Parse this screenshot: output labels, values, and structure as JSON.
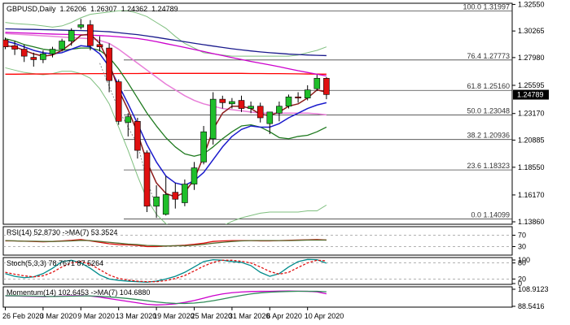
{
  "chart_data": {
    "type": "candlestick",
    "header": {
      "symbol": "GBPUSD,Daily",
      "ohlc": [
        "1.26206",
        "1.26307",
        "1.24362",
        "1.24789"
      ]
    },
    "colors": {
      "bull": "#1fbf2a",
      "bear": "#e01010",
      "wick": "#000000",
      "current_price_bg": "#000000"
    },
    "price_axis": {
      "ticks": [
        "1.32550",
        "1.30265",
        "1.27980",
        "1.25595",
        "1.23170",
        "1.20885",
        "1.18550",
        "1.16170",
        "1.13860"
      ],
      "ylim": [
        1.1365,
        1.3265
      ],
      "current_price": "1.24789"
    },
    "time_axis": {
      "labels": [
        "26 Feb 2020",
        "3 Mar 2020",
        "9 Mar 2020",
        "13 Mar 2020",
        "19 Mar 2020",
        "25 Mar 2020",
        "31 Mar 2020",
        "6 Apr 2020",
        "10 Apr 2020"
      ],
      "label_bar_index": [
        0,
        4,
        8,
        12,
        16,
        20,
        24,
        28,
        32
      ]
    },
    "fibonacci": {
      "levels": [
        {
          "label": "100.0 1.31997",
          "value": 1.31997
        },
        {
          "label": "76.4 1.27773",
          "value": 1.27773
        },
        {
          "label": "61.8 1.25160",
          "value": 1.2516
        },
        {
          "label": "50.0 1.23048",
          "value": 1.23048
        },
        {
          "label": "38.2 1.20936",
          "value": 1.20936
        },
        {
          "label": "23.6 1.18323",
          "value": 1.18323
        },
        {
          "label": "0.0 1.14099",
          "value": 1.14099
        }
      ]
    },
    "candles": [
      {
        "o": 1.295,
        "h": 1.297,
        "l": 1.287,
        "c": 1.289
      },
      {
        "o": 1.29,
        "h": 1.294,
        "l": 1.282,
        "c": 1.287
      },
      {
        "o": 1.287,
        "h": 1.291,
        "l": 1.276,
        "c": 1.281
      },
      {
        "o": 1.28,
        "h": 1.284,
        "l": 1.272,
        "c": 1.278
      },
      {
        "o": 1.278,
        "h": 1.286,
        "l": 1.275,
        "c": 1.283
      },
      {
        "o": 1.283,
        "h": 1.289,
        "l": 1.28,
        "c": 1.287
      },
      {
        "o": 1.287,
        "h": 1.296,
        "l": 1.285,
        "c": 1.294
      },
      {
        "o": 1.294,
        "h": 1.305,
        "l": 1.29,
        "c": 1.303
      },
      {
        "o": 1.306,
        "h": 1.313,
        "l": 1.304,
        "c": 1.308
      },
      {
        "o": 1.308,
        "h": 1.312,
        "l": 1.286,
        "c": 1.29
      },
      {
        "o": 1.291,
        "h": 1.298,
        "l": 1.285,
        "c": 1.289
      },
      {
        "o": 1.288,
        "h": 1.292,
        "l": 1.25,
        "c": 1.26
      },
      {
        "o": 1.259,
        "h": 1.261,
        "l": 1.222,
        "c": 1.225
      },
      {
        "o": 1.224,
        "h": 1.232,
        "l": 1.212,
        "c": 1.229
      },
      {
        "o": 1.225,
        "h": 1.228,
        "l": 1.193,
        "c": 1.2
      },
      {
        "o": 1.198,
        "h": 1.2,
        "l": 1.147,
        "c": 1.152
      },
      {
        "o": 1.152,
        "h": 1.17,
        "l": 1.142,
        "c": 1.16
      },
      {
        "o": 1.145,
        "h": 1.178,
        "l": 1.144,
        "c": 1.162
      },
      {
        "o": 1.164,
        "h": 1.172,
        "l": 1.15,
        "c": 1.158
      },
      {
        "o": 1.155,
        "h": 1.175,
        "l": 1.152,
        "c": 1.171
      },
      {
        "o": 1.171,
        "h": 1.19,
        "l": 1.166,
        "c": 1.185
      },
      {
        "o": 1.19,
        "h": 1.221,
        "l": 1.188,
        "c": 1.216
      },
      {
        "o": 1.21,
        "h": 1.25,
        "l": 1.205,
        "c": 1.244
      },
      {
        "o": 1.244,
        "h": 1.247,
        "l": 1.236,
        "c": 1.241
      },
      {
        "o": 1.24,
        "h": 1.245,
        "l": 1.236,
        "c": 1.242
      },
      {
        "o": 1.243,
        "h": 1.247,
        "l": 1.233,
        "c": 1.236
      },
      {
        "o": 1.236,
        "h": 1.242,
        "l": 1.232,
        "c": 1.238
      },
      {
        "o": 1.238,
        "h": 1.241,
        "l": 1.224,
        "c": 1.228
      },
      {
        "o": 1.223,
        "h": 1.232,
        "l": 1.214,
        "c": 1.233
      },
      {
        "o": 1.232,
        "h": 1.242,
        "l": 1.225,
        "c": 1.238
      },
      {
        "o": 1.238,
        "h": 1.248,
        "l": 1.236,
        "c": 1.246
      },
      {
        "o": 1.246,
        "h": 1.25,
        "l": 1.241,
        "c": 1.245
      },
      {
        "o": 1.245,
        "h": 1.256,
        "l": 1.243,
        "c": 1.252
      },
      {
        "o": 1.253,
        "h": 1.265,
        "l": 1.251,
        "c": 1.262
      },
      {
        "o": 1.262,
        "h": 1.263,
        "l": 1.244,
        "c": 1.248
      }
    ],
    "lines": [
      {
        "name": "",
        "color": "#ff0000",
        "width": 1.3,
        "values": [
          1.2655,
          1.2655,
          1.2656,
          1.2657,
          1.2657,
          1.2658,
          1.2658,
          1.2659,
          1.2659,
          1.266,
          1.266,
          1.266,
          1.2661,
          1.2661,
          1.2661,
          1.2662,
          1.2662,
          1.2662,
          1.2662,
          1.2662,
          1.2662,
          1.2662,
          1.2662,
          1.2662,
          1.2662,
          1.2662,
          1.2661,
          1.2661,
          1.266,
          1.266,
          1.2659,
          1.2658,
          1.2657,
          1.2656,
          1.2655
        ]
      },
      {
        "name": "",
        "color": "#cc00cc",
        "width": 1.3,
        "values": [
          1.3015,
          1.3012,
          1.3009,
          1.3006,
          1.3003,
          1.3,
          1.2998,
          1.2996,
          1.2994,
          1.2991,
          1.2987,
          1.2983,
          1.2977,
          1.297,
          1.2962,
          1.295,
          1.2935,
          1.2918,
          1.2902,
          1.2885,
          1.2868,
          1.285,
          1.2832,
          1.2815,
          1.2798,
          1.2781,
          1.2765,
          1.275,
          1.2735,
          1.2719,
          1.2702,
          1.2685,
          1.267,
          1.2655,
          1.264
        ]
      },
      {
        "name": "",
        "color": "#1a1a8c",
        "width": 1.3,
        "values": [
          1.3045,
          1.3043,
          1.3041,
          1.304,
          1.3038,
          1.3036,
          1.3034,
          1.3032,
          1.303,
          1.3028,
          1.3024,
          1.302,
          1.3012,
          1.3003,
          1.2995,
          1.2984,
          1.2972,
          1.2959,
          1.2946,
          1.2934,
          1.2921,
          1.2909,
          1.2897,
          1.2885,
          1.2874,
          1.2864,
          1.2855,
          1.2847,
          1.284,
          1.2834,
          1.2828,
          1.2824,
          1.282,
          1.2817,
          1.2815
        ]
      },
      {
        "name": "",
        "color": "#e87ed8",
        "width": 1.5,
        "values": [
          1.3005,
          1.3,
          1.2995,
          1.299,
          1.2985,
          1.298,
          1.2975,
          1.297,
          1.2965,
          1.296,
          1.2945,
          1.292,
          1.287,
          1.281,
          1.275,
          1.269,
          1.263,
          1.257,
          1.252,
          1.247,
          1.243,
          1.24,
          1.238,
          1.236,
          1.235,
          1.234,
          1.233,
          1.232,
          1.232,
          1.232,
          1.232,
          1.232,
          1.232,
          1.2315,
          1.2305
        ]
      },
      {
        "name": "",
        "color": "#1f7a1f",
        "width": 1.3,
        "values": [
          1.296,
          1.294,
          1.291,
          1.289,
          1.287,
          1.286,
          1.286,
          1.287,
          1.288,
          1.288,
          1.286,
          1.28,
          1.27,
          1.258,
          1.245,
          1.232,
          1.221,
          1.211,
          1.203,
          1.197,
          1.195,
          1.197,
          1.203,
          1.21,
          1.216,
          1.221,
          1.222,
          1.22,
          1.216,
          1.211,
          1.21,
          1.212,
          1.213,
          1.216,
          1.22
        ]
      },
      {
        "name": "",
        "color": "#1a1acc",
        "width": 1.5,
        "values": [
          1.294,
          1.292,
          1.289,
          1.286,
          1.284,
          1.283,
          1.284,
          1.287,
          1.29,
          1.289,
          1.283,
          1.272,
          1.256,
          1.24,
          1.223,
          1.205,
          1.19,
          1.178,
          1.172,
          1.17,
          1.174,
          1.181,
          1.192,
          1.203,
          1.212,
          1.218,
          1.221,
          1.22,
          1.22,
          1.223,
          1.228,
          1.232,
          1.236,
          1.239,
          1.241
        ]
      },
      {
        "name": "",
        "color": "#8b1a1a",
        "width": 1.5,
        "values": [
          1.29,
          1.289,
          1.286,
          1.283,
          1.281,
          1.282,
          1.286,
          1.292,
          1.299,
          1.3,
          1.292,
          1.275,
          1.252,
          1.235,
          1.215,
          1.19,
          1.172,
          1.163,
          1.16,
          1.164,
          1.175,
          1.195,
          1.218,
          1.232,
          1.238,
          1.238,
          1.236,
          1.231,
          1.23,
          1.233,
          1.238,
          1.24,
          1.245,
          1.252,
          1.25
        ]
      }
    ],
    "bollinger": {
      "color": "#7fbf7f",
      "upper": [
        1.31,
        1.309,
        1.3085,
        1.308,
        1.307,
        1.306,
        1.307,
        1.31,
        1.314,
        1.317,
        1.318,
        1.319,
        1.32,
        1.32,
        1.318,
        1.315,
        1.31,
        1.305,
        1.298,
        1.292,
        1.288,
        1.284,
        1.283,
        1.282,
        1.281,
        1.281,
        1.281,
        1.281,
        1.281,
        1.281,
        1.281,
        1.282,
        1.284,
        1.286,
        1.289
      ],
      "lower": [
        1.271,
        1.269,
        1.267,
        1.266,
        1.265,
        1.266,
        1.268,
        1.268,
        1.266,
        1.262,
        1.253,
        1.24,
        1.22,
        1.2,
        1.178,
        1.158,
        1.145,
        1.137,
        1.133,
        1.13,
        1.128,
        1.128,
        1.13,
        1.135,
        1.139,
        1.142,
        1.144,
        1.146,
        1.147,
        1.147,
        1.147,
        1.147,
        1.148,
        1.148,
        1.153
      ]
    },
    "dotted_path": {
      "color": "#888888",
      "points": [
        [
          10,
          1.275
        ],
        [
          12,
          1.235
        ],
        [
          14,
          1.205
        ],
        [
          15,
          1.175
        ],
        [
          16,
          1.15
        ]
      ]
    },
    "indicators": [
      {
        "name": "rsi",
        "label": "RSI(14) 52.8730 ->MA(7) 53.3524",
        "ylim": [
          0,
          100
        ],
        "levels": [
          70,
          30
        ],
        "ticks": [
          "70",
          "30"
        ],
        "series": [
          {
            "color": "#e01010",
            "values": [
              50,
              50,
              49,
              48,
              47,
              48,
              50,
              52,
              55,
              50,
              45,
              40,
              37,
              36,
              34,
              30,
              30,
              32,
              33,
              35,
              38,
              42,
              48,
              50,
              51,
              51,
              51,
              50,
              50,
              51,
              52,
              53,
              54,
              55,
              53
            ]
          },
          {
            "color": "#556b2f",
            "values": [
              51,
              50,
              49,
              49,
              48,
              48,
              49,
              50,
              52,
              51,
              48,
              45,
              42,
              39,
              37,
              34,
              33,
              32,
              33,
              33,
              35,
              38,
              42,
              45,
              48,
              50,
              51,
              51,
              51,
              51,
              51,
              52,
              53,
              53,
              53
            ]
          }
        ]
      },
      {
        "name": "stochastic",
        "label": "Stoch(5,3,3) 78.7671 87.5264",
        "ylim": [
          0,
          100
        ],
        "levels": [
          80,
          20
        ],
        "ticks": [
          "100",
          "80",
          "20",
          "0"
        ],
        "series": [
          {
            "color": "#008b8b",
            "values": [
              40,
              30,
              25,
              28,
              40,
              60,
              85,
              90,
              80,
              60,
              35,
              20,
              15,
              12,
              10,
              8,
              12,
              20,
              30,
              45,
              65,
              85,
              92,
              90,
              85,
              82,
              70,
              45,
              30,
              40,
              65,
              85,
              93,
              92,
              79
            ]
          },
          {
            "color": "#e01010",
            "values": [
              45,
              38,
              32,
              28,
              32,
              45,
              65,
              80,
              85,
              75,
              55,
              35,
              22,
              16,
              12,
              10,
              10,
              14,
              22,
              33,
              50,
              68,
              82,
              90,
              90,
              86,
              80,
              65,
              48,
              38,
              45,
              63,
              80,
              90,
              88
            ]
          }
        ]
      },
      {
        "name": "momentum",
        "label": "Momentum(14) 102.6453 ->MA(7) 104.6880",
        "ylim": [
          88.5,
          110.0
        ],
        "levels": [],
        "ticks": [
          "108.9123",
          "88.5416"
        ],
        "series": [
          {
            "color": "#cc00cc",
            "values": [
              100.5,
              100.3,
              100.0,
              99.8,
              99.6,
              99.8,
              100.2,
              100.5,
              100.6,
              100.2,
              99.0,
              97.5,
              96.0,
              94.5,
              93.0,
              91.5,
              90.8,
              91.2,
              92.0,
              93.5,
              95.5,
              98.0,
              100.5,
              102.5,
              103.8,
              104.5,
              105.0,
              105.2,
              105.3,
              105.5,
              105.6,
              105.4,
              105.2,
              104.6,
              102.6
            ]
          },
          {
            "color": "#2e8b57",
            "values": [
              100.6,
              100.5,
              100.3,
              100.1,
              99.9,
              99.8,
              99.9,
              100.1,
              100.3,
              100.3,
              99.9,
              99.3,
              98.5,
              97.6,
              96.5,
              95.3,
              94.0,
              93.0,
              92.5,
              92.4,
              92.8,
              93.8,
              95.3,
              97.1,
              99.0,
              100.9,
              102.5,
              103.6,
              104.3,
              104.8,
              105.1,
              105.3,
              105.3,
              105.2,
              104.7
            ]
          }
        ]
      }
    ]
  }
}
